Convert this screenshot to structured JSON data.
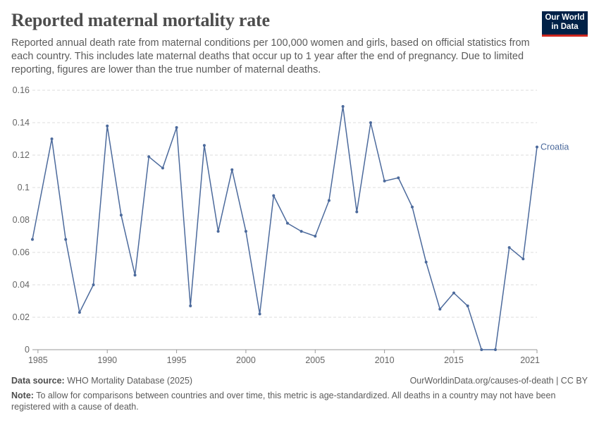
{
  "header": {
    "title": "Reported maternal mortality rate",
    "subtitle": "Reported annual death rate from maternal conditions per 100,000 women and girls, based on official statistics from each country. This includes late maternal deaths that occur up to 1 year after the end of pregnancy. Due to limited reporting, figures are lower than the true number of maternal deaths.",
    "logo_line1": "Our World",
    "logo_line2": "in Data"
  },
  "footer": {
    "source_label": "Data source:",
    "source_text": "WHO Mortality Database (2025)",
    "license": "OurWorldinData.org/causes-of-death | CC BY",
    "note_label": "Note:",
    "note_text": "To allow for comparisons between countries and over time, this metric is age-standardized. All deaths in a country may not have been registered with a cause of death."
  },
  "colors": {
    "line": "#4c6a9c",
    "grid": "#dddddd",
    "axis_text": "#666666",
    "logo_bg": "#002147",
    "logo_accent": "#ce261e"
  },
  "chart_data": {
    "type": "line",
    "title": "Reported maternal mortality rate",
    "xlabel": "",
    "ylabel": "",
    "xlim": [
      1984.6,
      2021
    ],
    "ylim": [
      0,
      0.16
    ],
    "x_ticks": [
      1985,
      1990,
      1995,
      2000,
      2005,
      2010,
      2015,
      2021
    ],
    "y_ticks": [
      0,
      0.02,
      0.04,
      0.06,
      0.08,
      0.1,
      0.12,
      0.14,
      0.16
    ],
    "y_tick_labels": [
      "0",
      "0.02",
      "0.04",
      "0.06",
      "0.08",
      "0.1",
      "0.12",
      "0.14",
      "0.16"
    ],
    "grid": "horizontal dashed",
    "legend": "end-of-line label",
    "series": [
      {
        "name": "Croatia",
        "x": [
          1984.6,
          1986,
          1987,
          1988,
          1989,
          1990,
          1991,
          1992,
          1993,
          1994,
          1995,
          1996,
          1997,
          1998,
          1999,
          2000,
          2001,
          2002,
          2003,
          2004,
          2005,
          2006,
          2007,
          2008,
          2009,
          2010,
          2011,
          2012,
          2013,
          2014,
          2015,
          2016,
          2017,
          2018,
          2019,
          2020,
          2021
        ],
        "y": [
          0.068,
          0.13,
          0.068,
          0.023,
          0.04,
          0.138,
          0.083,
          0.046,
          0.119,
          0.112,
          0.137,
          0.027,
          0.126,
          0.073,
          0.111,
          0.073,
          0.022,
          0.095,
          0.078,
          0.073,
          0.07,
          0.092,
          0.15,
          0.085,
          0.14,
          0.104,
          0.106,
          0.088,
          0.054,
          0.025,
          0.035,
          0.027,
          0.0,
          0.0,
          0.063,
          0.056,
          0.125
        ]
      }
    ]
  }
}
